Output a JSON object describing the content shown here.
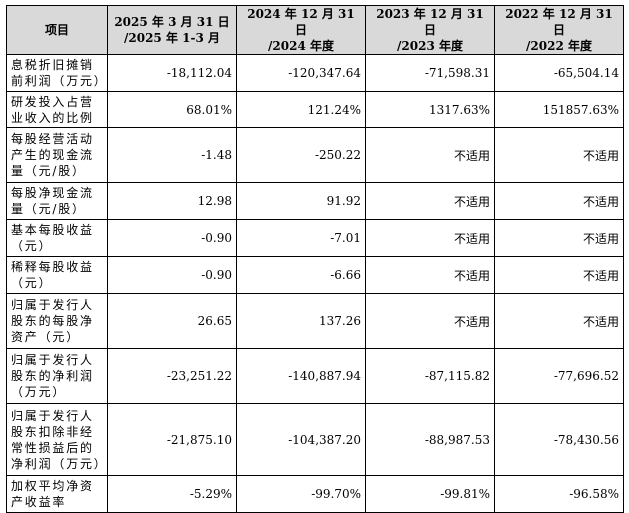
{
  "table": {
    "headers": [
      [
        "项目"
      ],
      [
        "2025 年 3 月 31 日",
        "/2025 年 1-3 月"
      ],
      [
        "2024 年 12 月 31 日",
        "/2024 年度"
      ],
      [
        "2023 年 12 月 31 日",
        "/2023 年度"
      ],
      [
        "2022 年 12 月 31 日",
        "/2022 年度"
      ]
    ],
    "rows": [
      {
        "label": "息税折旧摊销前利润（万元）",
        "values": [
          "-18,112.04",
          "-120,347.64",
          "-71,598.31",
          "-65,504.14"
        ]
      },
      {
        "label": "研发投入占营业收入的比例",
        "values": [
          "68.01%",
          "121.24%",
          "1317.63%",
          "151857.63%"
        ]
      },
      {
        "label": "每股经营活动产生的现金流量（元/股）",
        "values": [
          "-1.48",
          "-250.22",
          "不适用",
          "不适用"
        ]
      },
      {
        "label": "每股净现金流量（元/股）",
        "values": [
          "12.98",
          "91.92",
          "不适用",
          "不适用"
        ]
      },
      {
        "label": "基本每股收益（元）",
        "values": [
          "-0.90",
          "-7.01",
          "不适用",
          "不适用"
        ]
      },
      {
        "label": "稀释每股收益（元）",
        "values": [
          "-0.90",
          "-6.66",
          "不适用",
          "不适用"
        ]
      },
      {
        "label": "归属于发行人股东的每股净资产（元）",
        "values": [
          "26.65",
          "137.26",
          "不适用",
          "不适用"
        ]
      },
      {
        "label": "归属于发行人股东的净利润（万元）",
        "values": [
          "-23,251.22",
          "-140,887.94",
          "-87,115.82",
          "-77,696.52"
        ]
      },
      {
        "label": "归属于发行人股东扣除非经常性损益后的净利润（万元）",
        "values": [
          "-21,875.10",
          "-104,387.20",
          "-88,987.53",
          "-78,430.56"
        ]
      },
      {
        "label": "加权平均净资产收益率",
        "values": [
          "-5.29%",
          "-99.70%",
          "-99.81%",
          "-96.58%"
        ]
      }
    ]
  }
}
